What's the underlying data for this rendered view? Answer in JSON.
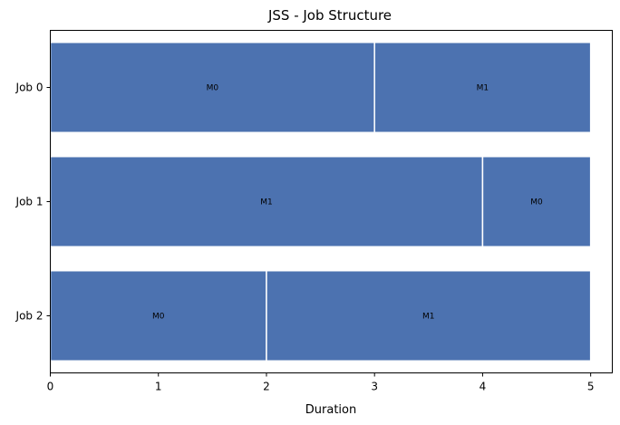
{
  "chart_data": {
    "type": "bar",
    "orientation": "horizontal-gantt",
    "title": "JSS - Job Structure",
    "xlabel": "Duration",
    "ylabel": "",
    "xlim": [
      0,
      5.2
    ],
    "xticks": [
      0,
      1,
      2,
      3,
      4,
      5
    ],
    "grid": false,
    "bar_color": "#4c72b0",
    "jobs": [
      {
        "label": "Job 0",
        "operations": [
          {
            "machine": "M0",
            "start": 0,
            "end": 3
          },
          {
            "machine": "M1",
            "start": 3,
            "end": 5
          }
        ]
      },
      {
        "label": "Job 1",
        "operations": [
          {
            "machine": "M1",
            "start": 0,
            "end": 4
          },
          {
            "machine": "M0",
            "start": 4,
            "end": 5
          }
        ]
      },
      {
        "label": "Job 2",
        "operations": [
          {
            "machine": "M0",
            "start": 0,
            "end": 2
          },
          {
            "machine": "M1",
            "start": 2,
            "end": 5
          }
        ]
      }
    ]
  }
}
